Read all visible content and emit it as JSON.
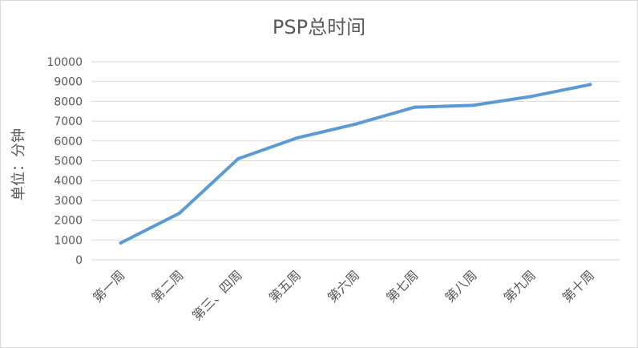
{
  "chart_data": {
    "type": "line",
    "title": "PSP总时间",
    "xlabel": "",
    "ylabel": "单位：分钟",
    "categories": [
      "第一周",
      "第二周",
      "第三、四周",
      "第五周",
      "第六周",
      "第七周",
      "第八周",
      "第九周",
      "第十周"
    ],
    "series": [
      {
        "values": [
          850,
          2350,
          5100,
          6150,
          6850,
          7700,
          7800,
          8250,
          8850
        ],
        "color": "#5b9bd5"
      }
    ],
    "ylim": [
      0,
      10000
    ],
    "yticks": [
      0,
      1000,
      2000,
      3000,
      4000,
      5000,
      6000,
      7000,
      8000,
      9000,
      10000
    ],
    "grid": true,
    "legend": "none"
  }
}
